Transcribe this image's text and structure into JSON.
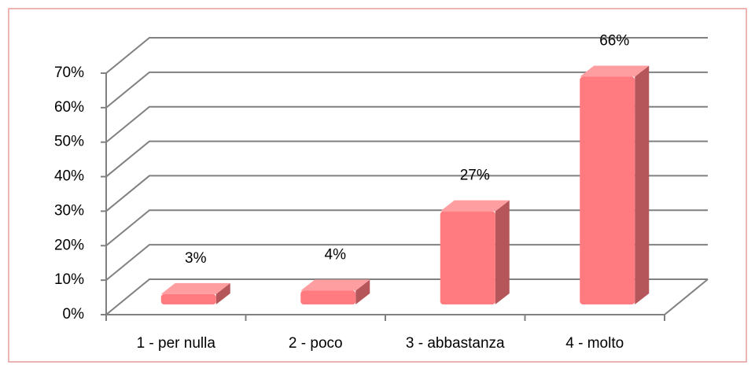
{
  "chart_data": {
    "type": "bar3d",
    "categories": [
      "1 - per nulla",
      "2 - poco",
      "3 - abbastanza",
      "4 - molto"
    ],
    "values": [
      3,
      4,
      27,
      66
    ],
    "value_labels": [
      "3%",
      "4%",
      "27%",
      "66%"
    ],
    "color": "#ff7b80",
    "ylim": [
      0,
      70
    ],
    "yticks": [
      {
        "value": 0,
        "label": "0%"
      },
      {
        "value": 10,
        "label": "10%"
      },
      {
        "value": 20,
        "label": "20%"
      },
      {
        "value": 30,
        "label": "30%"
      },
      {
        "value": 40,
        "label": "40%"
      },
      {
        "value": 50,
        "label": "50%"
      },
      {
        "value": 60,
        "label": "60%"
      },
      {
        "value": 70,
        "label": "70%"
      }
    ],
    "grid": true
  }
}
